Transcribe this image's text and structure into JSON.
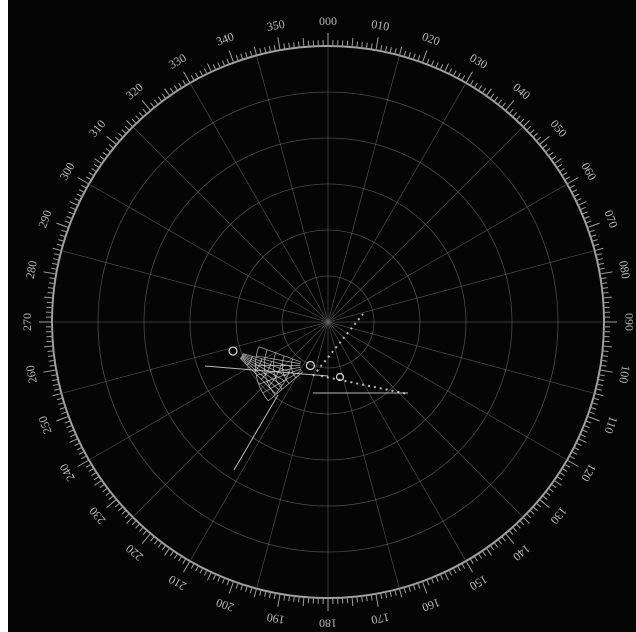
{
  "display": {
    "background": "#050505",
    "grid_color": "#6a6a6a",
    "ring_color": "#a0a0a0",
    "label_color": "#b8b8b8",
    "track_color": "#d8d8d8"
  },
  "bearing_labels": [
    {
      "deg": 0,
      "text": "000"
    },
    {
      "deg": 10,
      "text": "010"
    },
    {
      "deg": 20,
      "text": "020"
    },
    {
      "deg": 30,
      "text": "030"
    },
    {
      "deg": 40,
      "text": "040"
    },
    {
      "deg": 50,
      "text": "050"
    },
    {
      "deg": 60,
      "text": "060"
    },
    {
      "deg": 70,
      "text": "070"
    },
    {
      "deg": 80,
      "text": "080"
    },
    {
      "deg": 90,
      "text": "090"
    },
    {
      "deg": 100,
      "text": "100"
    },
    {
      "deg": 110,
      "text": "110"
    },
    {
      "deg": 120,
      "text": "120"
    },
    {
      "deg": 130,
      "text": "130"
    },
    {
      "deg": 140,
      "text": "140"
    },
    {
      "deg": 150,
      "text": "150"
    },
    {
      "deg": 160,
      "text": "160"
    },
    {
      "deg": 170,
      "text": "170"
    },
    {
      "deg": 180,
      "text": "180"
    },
    {
      "deg": 190,
      "text": "190"
    },
    {
      "deg": 200,
      "text": "200"
    },
    {
      "deg": 210,
      "text": "210"
    },
    {
      "deg": 220,
      "text": "220"
    },
    {
      "deg": 230,
      "text": "230"
    },
    {
      "deg": 240,
      "text": "240"
    },
    {
      "deg": 250,
      "text": "250"
    },
    {
      "deg": 260,
      "text": "260"
    },
    {
      "deg": 270,
      "text": "270"
    },
    {
      "deg": 280,
      "text": "280"
    },
    {
      "deg": 290,
      "text": "290"
    },
    {
      "deg": 300,
      "text": "300"
    },
    {
      "deg": 310,
      "text": "310"
    },
    {
      "deg": 320,
      "text": "320"
    },
    {
      "deg": 330,
      "text": "330"
    },
    {
      "deg": 340,
      "text": "340"
    },
    {
      "deg": 350,
      "text": "350"
    }
  ],
  "range_rings": 6,
  "spoke_step_deg": 15,
  "targets": [
    {
      "id": "contact-a",
      "bearing_deg": 253,
      "range": 0.36,
      "heading_deg": 120,
      "arc_deg": 30
    },
    {
      "id": "contact-b",
      "bearing_deg": 202,
      "range": 0.17,
      "heading_deg": 260,
      "arc_deg": 60
    }
  ]
}
